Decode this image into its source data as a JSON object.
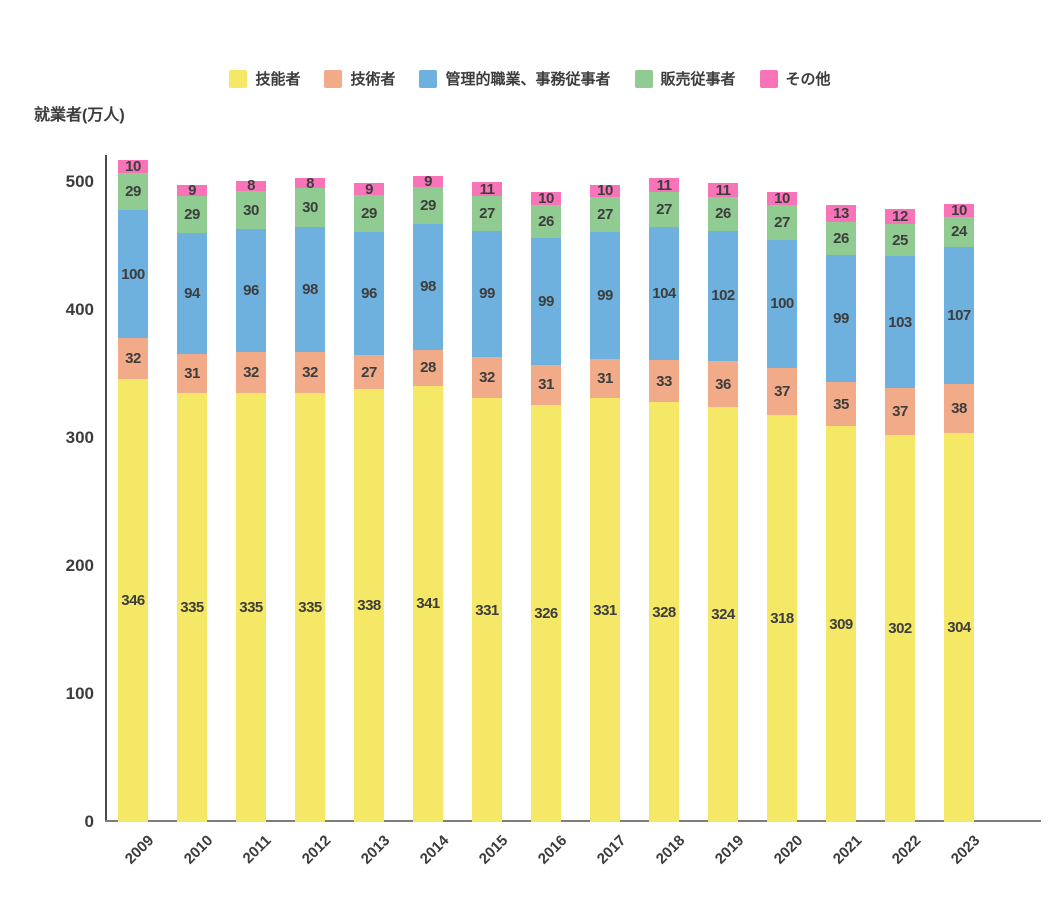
{
  "title": "就業者(万人)",
  "legend": [
    {
      "label": "技能者",
      "color": "#F5E866"
    },
    {
      "label": "技術者",
      "color": "#F2AB88"
    },
    {
      "label": "管理的職業、事務従事者",
      "color": "#6FB1DE"
    },
    {
      "label": "販売従事者",
      "color": "#90CB92"
    },
    {
      "label": "その他",
      "color": "#F973B8"
    }
  ],
  "chart_data": {
    "type": "bar",
    "stacked": true,
    "title": "",
    "ylabel": "就業者(万人)",
    "xlabel": "",
    "grid": false,
    "legend_position": "top",
    "ylim": [
      0,
      500
    ],
    "y_ticks": [
      0,
      100,
      200,
      300,
      400,
      500
    ],
    "categories": [
      "2009",
      "2010",
      "2011",
      "2012",
      "2013",
      "2014",
      "2015",
      "2016",
      "2017",
      "2018",
      "2019",
      "2020",
      "2021",
      "2022",
      "2023"
    ],
    "series": [
      {
        "name": "技能者",
        "color": "#F5E866",
        "values": [
          346,
          335,
          335,
          335,
          338,
          341,
          331,
          326,
          331,
          328,
          324,
          318,
          309,
          302,
          304
        ]
      },
      {
        "name": "技術者",
        "color": "#F2AB88",
        "values": [
          32,
          31,
          32,
          32,
          27,
          28,
          32,
          31,
          31,
          33,
          36,
          37,
          35,
          37,
          38
        ]
      },
      {
        "name": "管理的職業、事務従事者",
        "color": "#6FB1DE",
        "values": [
          100,
          94,
          96,
          98,
          96,
          98,
          99,
          99,
          99,
          104,
          102,
          100,
          99,
          103,
          107
        ]
      },
      {
        "name": "販売従事者",
        "color": "#90CB92",
        "values": [
          29,
          29,
          30,
          30,
          29,
          29,
          27,
          26,
          27,
          27,
          26,
          27,
          26,
          25,
          24
        ]
      },
      {
        "name": "その他",
        "color": "#F973B8",
        "values": [
          10,
          9,
          8,
          8,
          9,
          9,
          11,
          10,
          10,
          11,
          11,
          10,
          13,
          12,
          10
        ]
      }
    ]
  },
  "colors": {
    "text": "#3c3c3c",
    "y_axis_line": "#4a4a4a",
    "x_axis_line": "#7d7d7d",
    "background": "#ffffff"
  }
}
